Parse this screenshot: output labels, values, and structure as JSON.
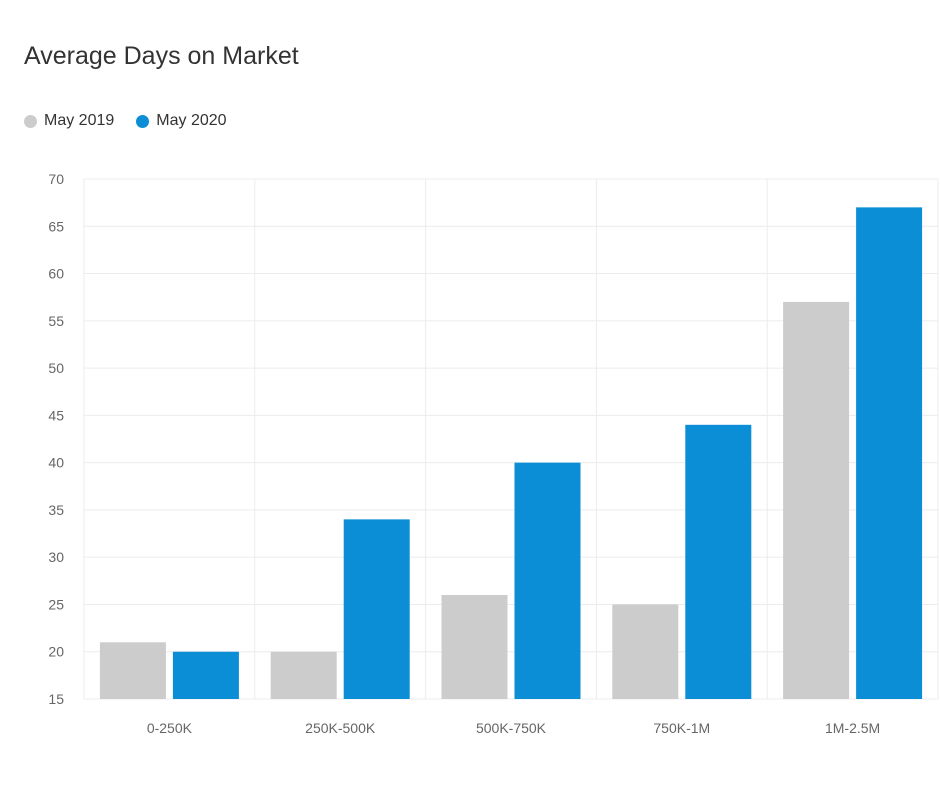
{
  "chart_data": {
    "type": "bar",
    "title": "Average Days on Market",
    "xlabel": "",
    "ylabel": "",
    "categories": [
      "0-250K",
      "250K-500K",
      "500K-750K",
      "750K-1M",
      "1M-2.5M"
    ],
    "series": [
      {
        "name": "May 2019",
        "values": [
          21,
          20,
          26,
          25,
          57
        ],
        "color": "#cccccc"
      },
      {
        "name": "May 2020",
        "values": [
          20,
          34,
          40,
          44,
          67
        ],
        "color": "#0b8ed6"
      }
    ],
    "ylim": [
      15,
      70
    ],
    "yticks": [
      15,
      20,
      25,
      30,
      35,
      40,
      45,
      50,
      55,
      60,
      65,
      70
    ],
    "grid": true,
    "legend_position": "top-left"
  }
}
